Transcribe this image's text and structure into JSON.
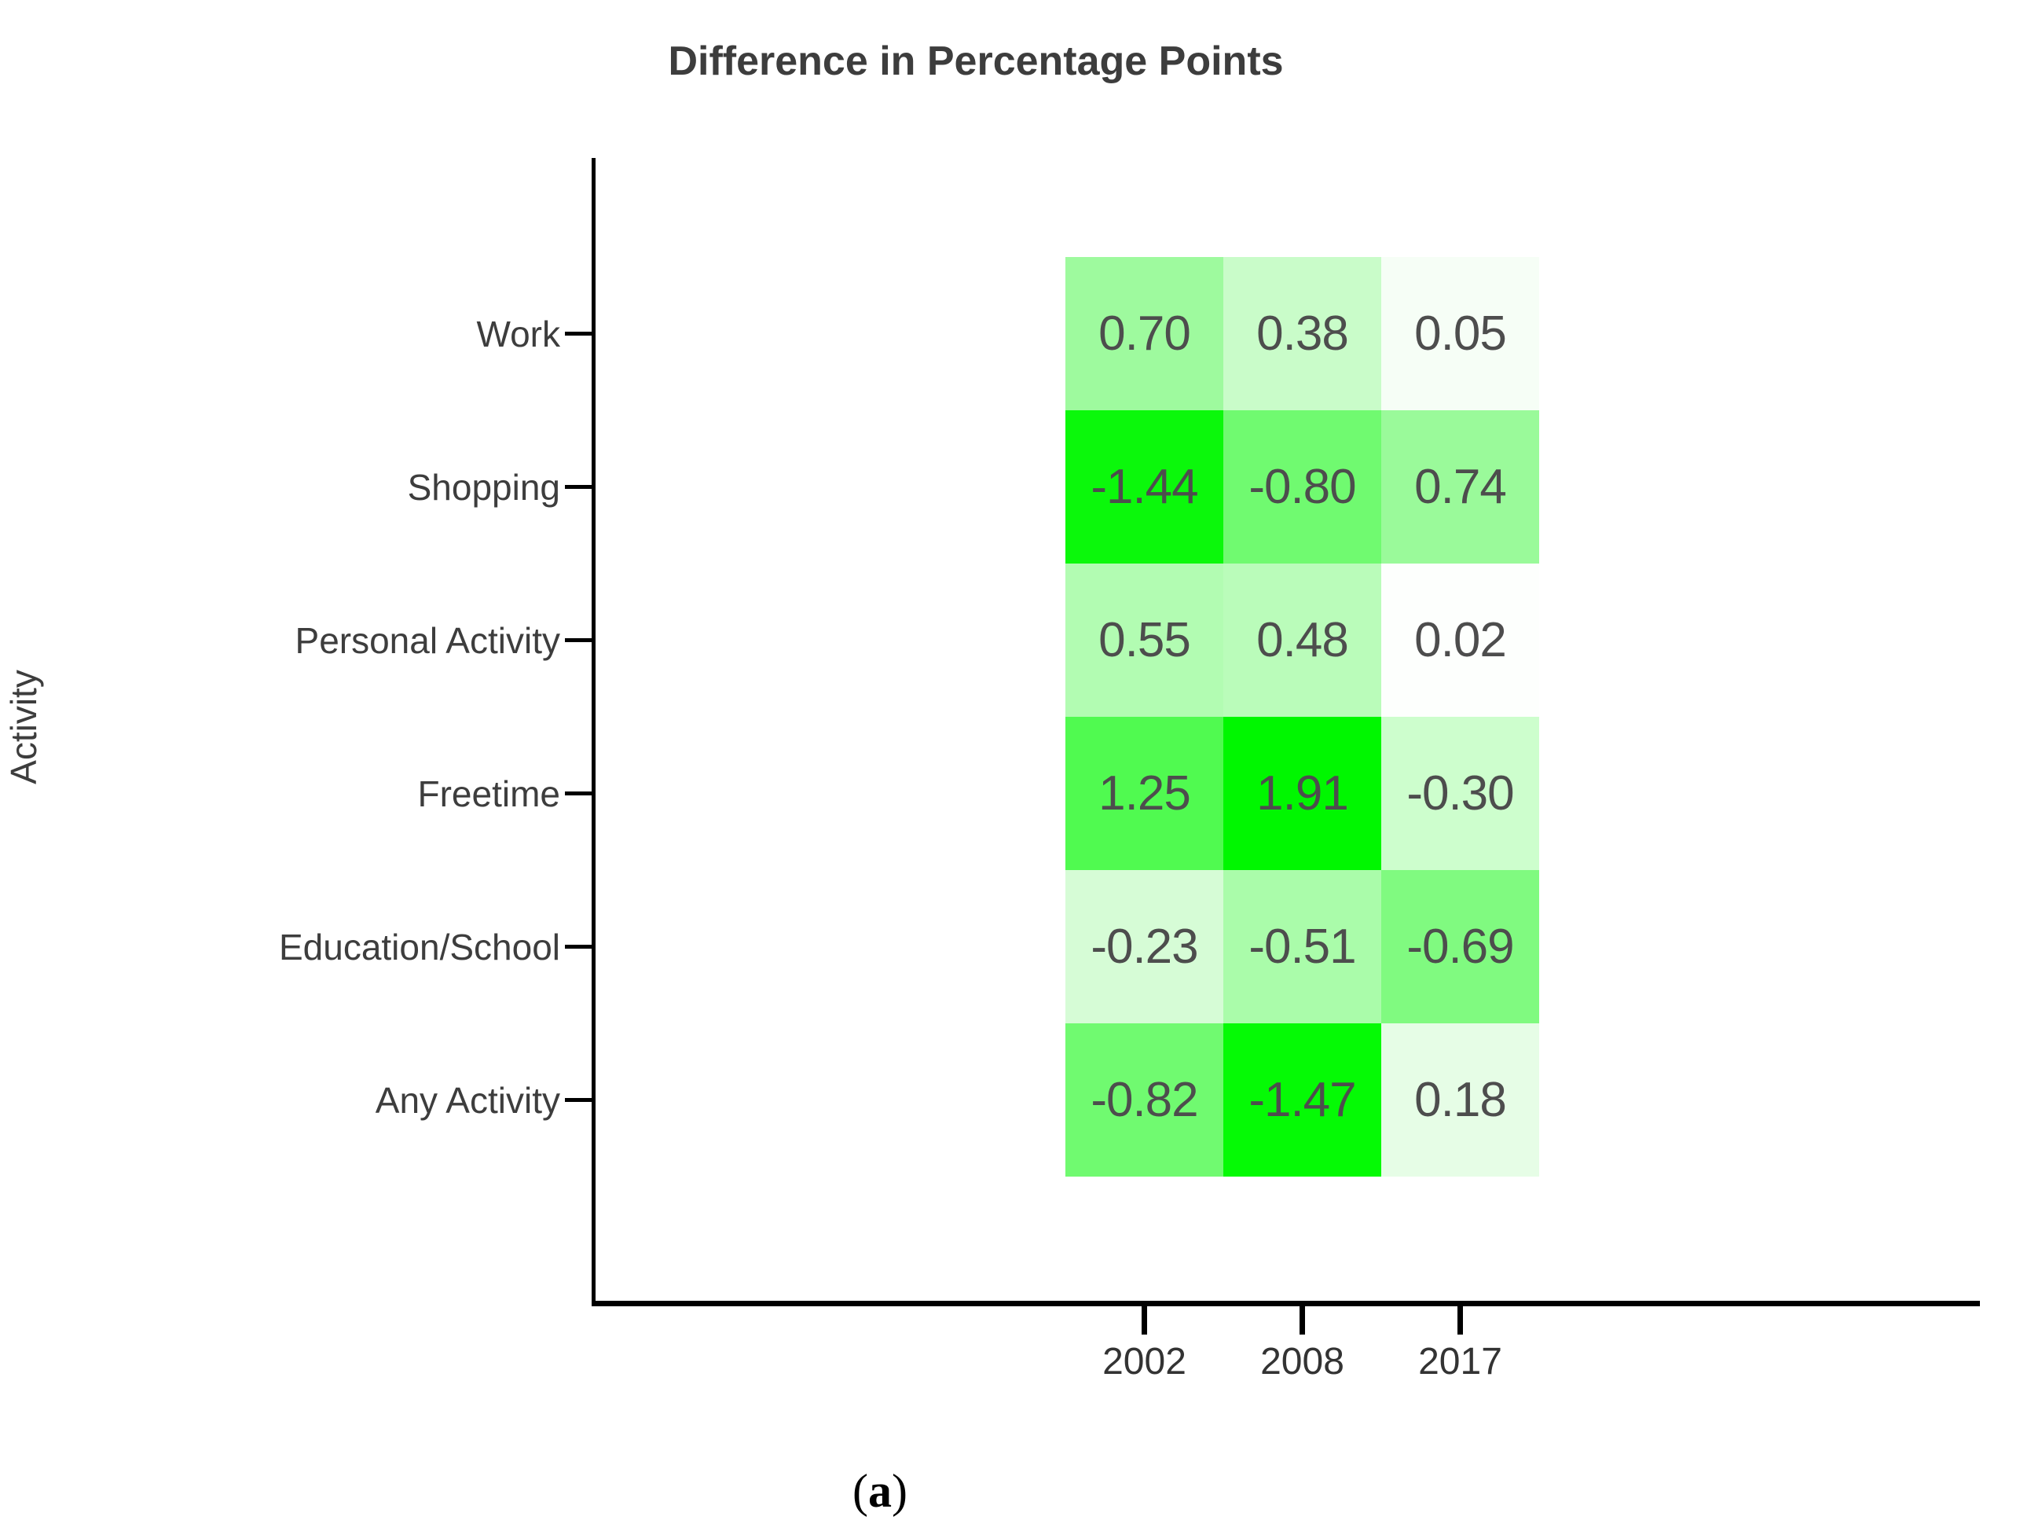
{
  "figure": {
    "title": "Difference in Percentage Points",
    "y_axis_label": "Activity",
    "caption": {
      "open": "(",
      "letter": "a",
      "close": ")"
    }
  },
  "chart_data": {
    "type": "heatmap",
    "title": "Difference in Percentage Points",
    "xlabel": "",
    "ylabel": "Activity",
    "x_categories": [
      "2002",
      "2008",
      "2017"
    ],
    "y_categories": [
      "Work",
      "Shopping",
      "Personal Activity",
      "Freetime",
      "Education/School",
      "Any Activity"
    ],
    "values": [
      [
        0.7,
        0.38,
        0.05
      ],
      [
        -1.44,
        -0.8,
        0.74
      ],
      [
        0.55,
        0.48,
        0.02
      ],
      [
        1.25,
        1.91,
        -0.3
      ],
      [
        -0.23,
        -0.51,
        -0.69
      ],
      [
        -0.82,
        -1.47,
        0.18
      ]
    ],
    "labels": [
      [
        "0.70",
        "0.38",
        "0.05"
      ],
      [
        "-1.44",
        "-0.80",
        "0.74"
      ],
      [
        "0.55",
        "0.48",
        "0.02"
      ],
      [
        "1.25",
        "1.91",
        "-0.30"
      ],
      [
        "-0.23",
        "-0.51",
        "-0.69"
      ],
      [
        "-0.82",
        "-1.47",
        "0.18"
      ]
    ],
    "cell_colors": [
      [
        "#9efa9e",
        "#c9fcc9",
        "#f6fef6"
      ],
      [
        "#0bf80b",
        "#70fa70",
        "#9afa9a"
      ],
      [
        "#b2fcb2",
        "#bafcba",
        "#fdfffd"
      ],
      [
        "#50fa50",
        "#00f700",
        "#cdfecd"
      ],
      [
        "#d6fcd6",
        "#aafcaa",
        "#80fa80"
      ],
      [
        "#70fa70",
        "#05fa05",
        "#e6fde6"
      ]
    ],
    "colormap": {
      "low_color": "#ffffff",
      "high_color": "#00f700",
      "mapping": "intensity proportional to absolute value",
      "abs_range": [
        0,
        1.91
      ]
    },
    "grid": "off",
    "legend": "none",
    "panel_label": "(a)"
  }
}
